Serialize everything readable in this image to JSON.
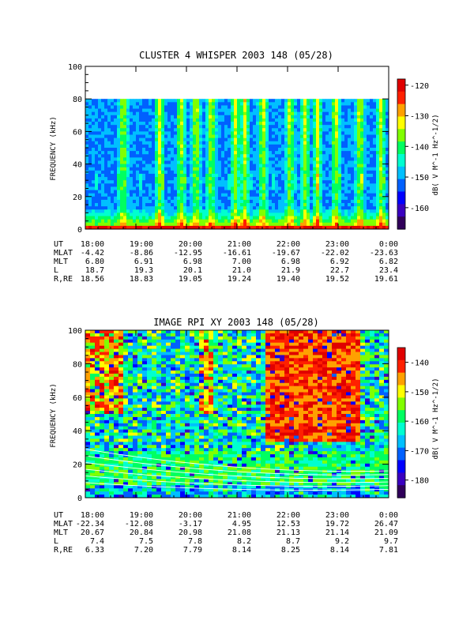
{
  "chart_data": [
    {
      "type": "heatmap",
      "title": "CLUSTER 4 WHISPER 2003 148 (05/28)",
      "ylabel": "FREQUENCY (kHz)",
      "ylim": [
        0,
        100
      ],
      "y_ticks": [
        "0",
        "20",
        "40",
        "60",
        "80",
        "100"
      ],
      "colorbar": {
        "label": "dB( V M⁻¹ Hz⁻¹ᐟ²)",
        "label_text": "dB( V M^-1 Hz^-1/2)",
        "ticks": [
          "-120",
          "-130",
          "-140",
          "-150",
          "-160"
        ],
        "range": [
          -167,
          -118
        ]
      },
      "data_max_frequency_khz": 80,
      "orbit_rows": [
        {
          "label": "UT",
          "values": [
            "18:00",
            "19:00",
            "20:00",
            "21:00",
            "22:00",
            "23:00",
            "0:00"
          ]
        },
        {
          "label": "MLAT",
          "values": [
            "-4.42",
            "-8.86",
            "-12.95",
            "-16.61",
            "-19.67",
            "-22.02",
            "-23.63"
          ]
        },
        {
          "label": "MLT",
          "values": [
            "6.80",
            "6.91",
            "6.98",
            "7.00",
            "6.98",
            "6.92",
            "6.82"
          ]
        },
        {
          "label": "L",
          "values": [
            "18.7",
            "19.3",
            "20.1",
            "21.0",
            "21.9",
            "22.7",
            "23.4"
          ]
        },
        {
          "label": "R,RE",
          "values": [
            "18.56",
            "18.83",
            "19.05",
            "19.24",
            "19.40",
            "19.52",
            "19.61"
          ]
        }
      ]
    },
    {
      "type": "heatmap",
      "title": "IMAGE RPI XY 2003 148 (05/28)",
      "ylabel": "FREQUENCY (kHz)",
      "ylim": [
        0,
        100
      ],
      "y_ticks": [
        "0",
        "20",
        "40",
        "60",
        "80",
        "100"
      ],
      "colorbar": {
        "label_text": "dB( V M^-1 Hz^-1/2)",
        "ticks": [
          "-140",
          "-150",
          "-160",
          "-170",
          "-180"
        ],
        "range": [
          -186,
          -135
        ]
      },
      "orbit_rows": [
        {
          "label": "UT",
          "values": [
            "18:00",
            "19:00",
            "20:00",
            "21:00",
            "22:00",
            "23:00",
            "0:00"
          ]
        },
        {
          "label": "MLAT",
          "values": [
            "-22.34",
            "-12.08",
            "-3.17",
            "4.95",
            "12.53",
            "19.72",
            "26.47"
          ]
        },
        {
          "label": "MLT",
          "values": [
            "20.67",
            "20.84",
            "20.98",
            "21.08",
            "21.13",
            "21.14",
            "21.09"
          ]
        },
        {
          "label": "L",
          "values": [
            "7.4",
            "7.5",
            "7.8",
            "8.2",
            "8.7",
            "9.2",
            "9.7"
          ]
        },
        {
          "label": "R,RE",
          "values": [
            "6.33",
            "7.20",
            "7.79",
            "8.14",
            "8.25",
            "8.14",
            "7.81"
          ]
        }
      ]
    }
  ],
  "colors": {
    "palette": [
      "#000000",
      "#30005a",
      "#3a00c0",
      "#0000ff",
      "#0060ff",
      "#00c0ff",
      "#00ffd0",
      "#00ff60",
      "#80ff00",
      "#ffff00",
      "#ffa000",
      "#ff2000",
      "#e00000"
    ]
  }
}
